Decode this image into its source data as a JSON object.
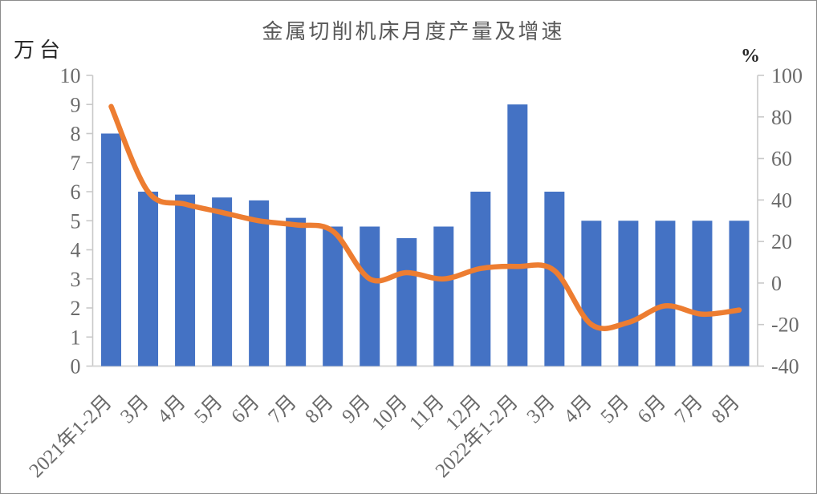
{
  "title": "金属切削机床月度产量及增速",
  "left_axis": {
    "unit": "万台",
    "min": 0,
    "max": 10,
    "step": 1,
    "tick_labels": [
      "10",
      "9",
      "8",
      "7",
      "6",
      "5",
      "4",
      "3",
      "2",
      "1",
      "0"
    ]
  },
  "right_axis": {
    "unit": "%",
    "min": -40,
    "max": 100,
    "step": 20,
    "tick_labels": [
      "100",
      "80",
      "60",
      "40",
      "20",
      "0",
      "-20",
      "-40"
    ]
  },
  "colors": {
    "bar": "#4472C4",
    "line": "#ED7D31",
    "axis_line": "#c9c9c9",
    "tick_mark": "#c9c9c9",
    "tick_label_text": "#6b6b6b",
    "title_text": "#595959",
    "unit_text": "#262626"
  },
  "chart_data": {
    "type": "combo",
    "title": "金属切削机床月度产量及增速",
    "categories": [
      "2021年1-2月",
      "3月",
      "4月",
      "5月",
      "6月",
      "7月",
      "8月",
      "9月",
      "10月",
      "11月",
      "12月",
      "2022年1-2月",
      "3月",
      "4月",
      "5月",
      "6月",
      "7月",
      "8月"
    ],
    "series": [
      {
        "name": "万台",
        "type": "bar",
        "axis": "left",
        "color": "#4472C4",
        "values": [
          8.0,
          6.0,
          5.9,
          5.8,
          5.7,
          5.1,
          4.8,
          4.8,
          4.4,
          4.8,
          6.0,
          9.0,
          6.0,
          5.0,
          5.0,
          5.0,
          5.0,
          5.0
        ]
      },
      {
        "name": "%",
        "type": "line",
        "axis": "right",
        "color": "#ED7D31",
        "values": [
          85,
          44,
          38,
          34,
          30,
          28,
          25,
          2,
          5,
          2,
          7,
          8,
          6,
          -20,
          -19,
          -11,
          -15,
          -13
        ]
      }
    ],
    "xlabel": "",
    "ylabel_left": "万台",
    "ylabel_right": "%",
    "ylim_left": [
      0,
      10
    ],
    "ylim_right": [
      -40,
      100
    ],
    "grid": false,
    "legend": "none",
    "x_label_rotation_deg": -45
  }
}
